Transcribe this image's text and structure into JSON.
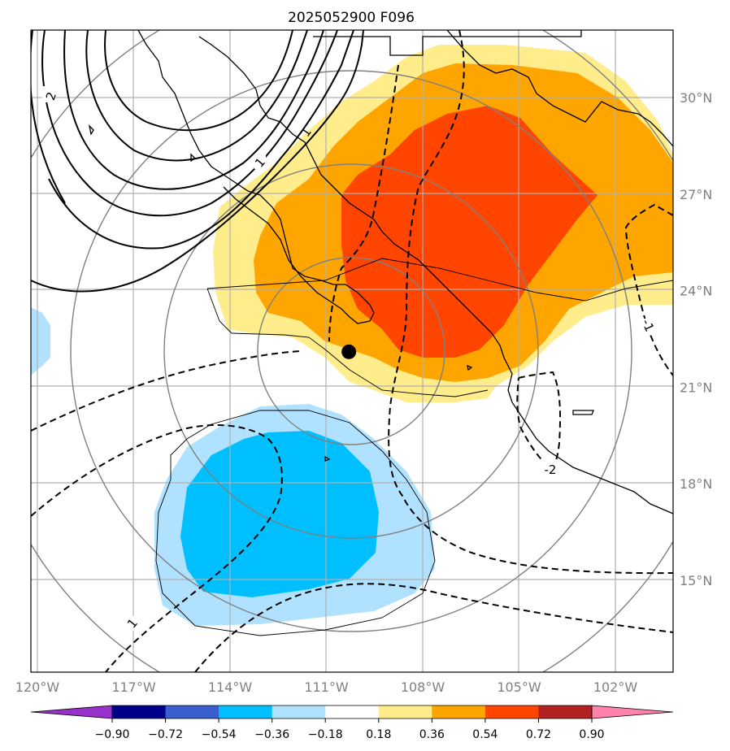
{
  "title": "2025052900 F096",
  "chart_data": {
    "type": "map",
    "projection": "lat-lon",
    "lon_range": [
      -120,
      -100.8
    ],
    "lat_range": [
      12.6,
      32.5
    ],
    "lon_ticks": [
      {
        "value": -120,
        "label": "120°W"
      },
      {
        "value": -117,
        "label": "117°W"
      },
      {
        "value": -114,
        "label": "114°W"
      },
      {
        "value": -111,
        "label": "111°W"
      },
      {
        "value": -108,
        "label": "108°W"
      },
      {
        "value": -105,
        "label": "105°W"
      },
      {
        "value": -102,
        "label": "102°W"
      }
    ],
    "lat_ticks": [
      {
        "value": 30,
        "label": "30°N"
      },
      {
        "value": 27,
        "label": "27°N"
      },
      {
        "value": 24,
        "label": "24°N"
      },
      {
        "value": 21,
        "label": "21°N"
      },
      {
        "value": 18,
        "label": "18°N"
      },
      {
        "value": 15,
        "label": "15°N"
      }
    ],
    "colorbar": {
      "levels": [
        "−0.90",
        "−0.72",
        "−0.54",
        "−0.36",
        "−0.18",
        "0.18",
        "0.36",
        "0.54",
        "0.72",
        "0.90"
      ],
      "colors": [
        "#9932cc",
        "#00008b",
        "#3a5fcd",
        "#00bfff",
        "#b0e2ff",
        "#ffffff",
        "#ffec8b",
        "#ffa500",
        "#ff4500",
        "#b22222",
        "#ff83aa"
      ],
      "extend": "both"
    },
    "contour_labels": [
      "2",
      "1",
      "1",
      "-1",
      "-2",
      "1",
      "-1"
    ],
    "center_marker": {
      "lon": -110.3,
      "lat": 22.1
    }
  }
}
